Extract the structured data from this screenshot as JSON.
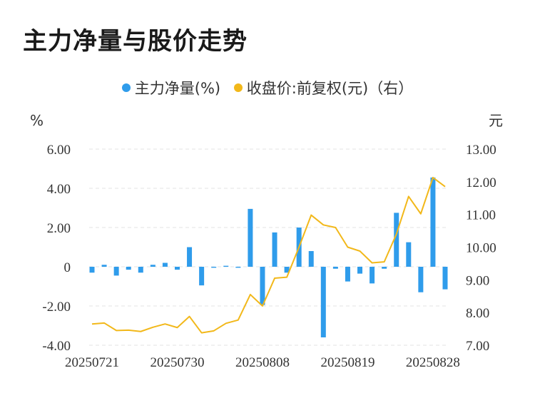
{
  "title": "主力净量与股价走势",
  "legend": [
    {
      "label": "主力净量(%)",
      "color": "#2f9ceb"
    },
    {
      "label": "收盘价:前复权(元)（右）",
      "color": "#f2b81a"
    }
  ],
  "chart_data": {
    "type": "bar+line",
    "left_unit": "%",
    "right_unit": "元",
    "y_left": {
      "min": -4,
      "max": 6,
      "ticks": [
        "6.00",
        "4.00",
        "2.00",
        "0",
        "-2.00",
        "-4.00"
      ]
    },
    "y_right": {
      "min": 7,
      "max": 13,
      "ticks": [
        "13.00",
        "12.00",
        "11.00",
        "10.00",
        "9.00",
        "8.00",
        "7.00"
      ]
    },
    "x_tick_labels": [
      "20250721",
      "20250730",
      "20250808",
      "20250819",
      "20250828"
    ],
    "series": [
      {
        "name": "主力净量(%)",
        "kind": "bar",
        "values": [
          -0.3,
          0.1,
          -0.45,
          -0.15,
          -0.3,
          0.1,
          0.2,
          -0.15,
          1.0,
          -0.95,
          -0.05,
          0.05,
          -0.05,
          2.95,
          -1.95,
          1.75,
          -0.3,
          2.0,
          0.8,
          -3.6,
          -0.1,
          -0.75,
          -0.35,
          -0.85,
          -0.1,
          2.75,
          1.25,
          -1.3,
          4.55,
          -1.15
        ]
      },
      {
        "name": "收盘价:前复权(元)（右）",
        "kind": "line",
        "values": [
          7.65,
          7.68,
          7.45,
          7.46,
          7.42,
          7.55,
          7.65,
          7.54,
          7.88,
          7.38,
          7.44,
          7.67,
          7.77,
          8.55,
          8.2,
          9.05,
          9.08,
          10.0,
          10.98,
          10.68,
          10.6,
          10.0,
          9.88,
          9.52,
          9.55,
          10.4,
          11.55,
          11.02,
          12.13,
          11.85
        ]
      }
    ]
  }
}
